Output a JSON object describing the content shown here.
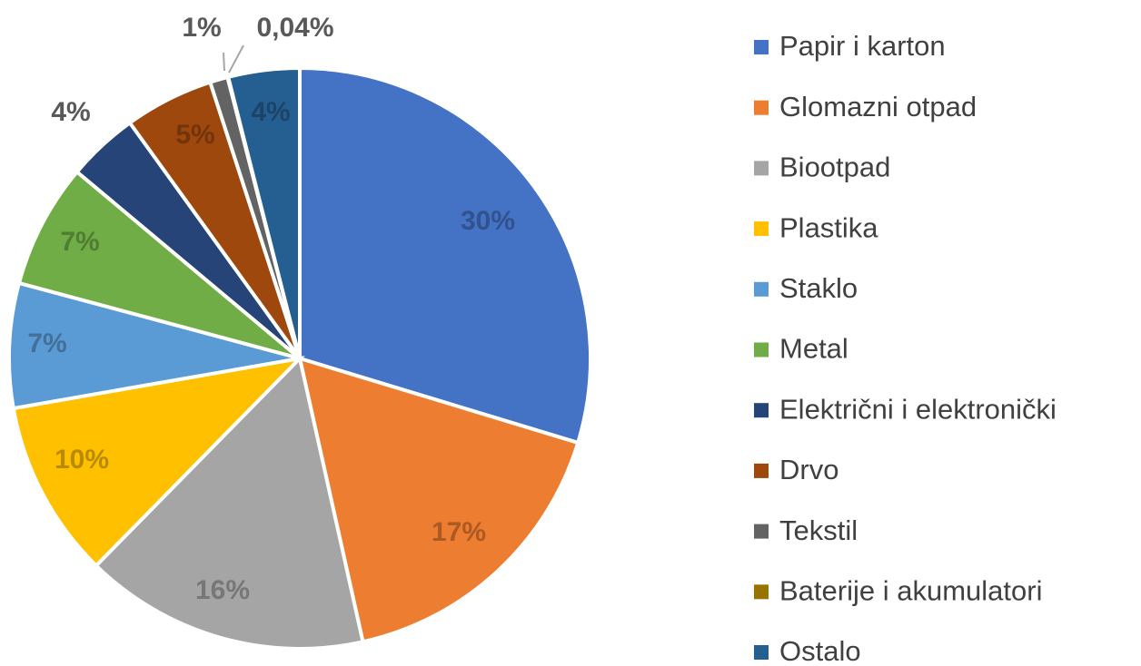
{
  "chart_data": {
    "type": "pie",
    "categories": [
      "Papir i karton",
      "Glomazni otpad",
      "Biootpad",
      "Plastika",
      "Staklo",
      "Metal",
      "Električni i elektronički",
      "Drvo",
      "Tekstil",
      "Baterije i akumulatori",
      "Ostalo"
    ],
    "values": [
      30,
      17,
      16,
      10,
      7,
      7,
      4,
      5,
      1,
      0.04,
      4
    ],
    "value_labels": [
      "30%",
      "17%",
      "16%",
      "10%",
      "7%",
      "7%",
      "4%",
      "5%",
      "1%",
      "0,04%",
      "4%"
    ],
    "colors": [
      "#4472c4",
      "#ed7d31",
      "#a5a5a5",
      "#ffc000",
      "#5b9bd5",
      "#70ad47",
      "#264478",
      "#9e480e",
      "#636363",
      "#997300",
      "#255e91"
    ],
    "legend": "right"
  }
}
